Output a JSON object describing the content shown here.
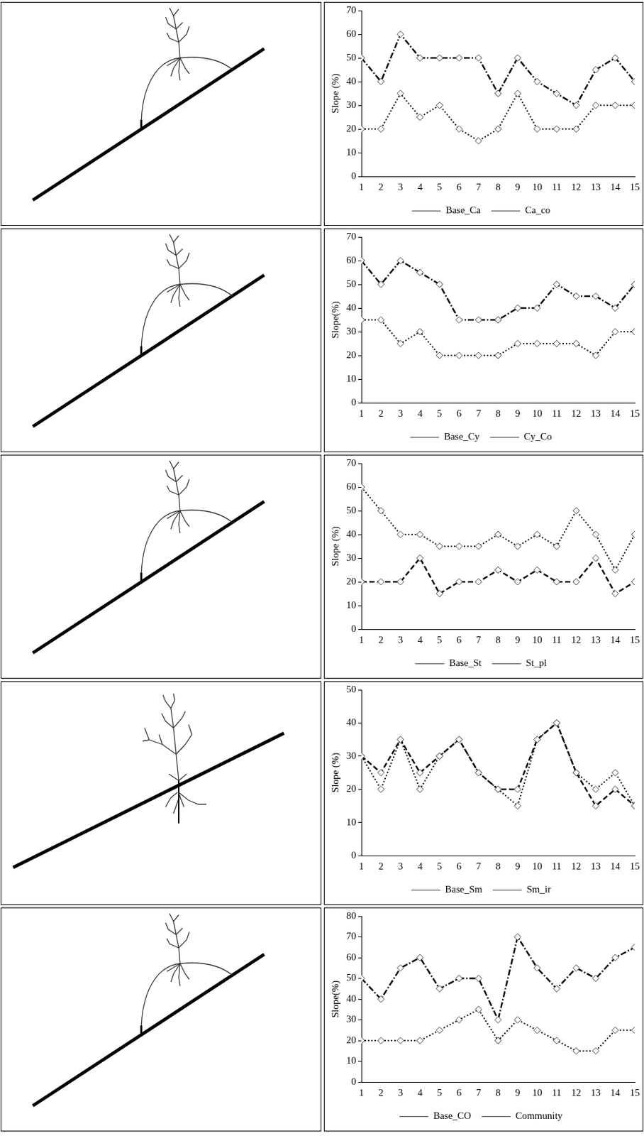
{
  "chart_data": [
    {
      "type": "line",
      "y_label": "Slope (%)",
      "categories": [
        1,
        2,
        3,
        4,
        5,
        6,
        7,
        8,
        9,
        10,
        11,
        12,
        13,
        14,
        15
      ],
      "ylim": [
        0,
        70
      ],
      "yticks": [
        0,
        10,
        20,
        30,
        40,
        50,
        60,
        70
      ],
      "grid": false,
      "legend": "bottom",
      "series": [
        {
          "name": "Base_Ca",
          "color": "#000000",
          "marker": "diamond",
          "line_style": "dotted",
          "values": [
            20,
            20,
            35,
            25,
            30,
            20,
            15,
            20,
            35,
            20,
            20,
            20,
            30,
            30,
            30
          ]
        },
        {
          "name": "Ca_co",
          "color": "#000000",
          "marker": "diamond",
          "line_style": "dashdot",
          "values": [
            50,
            40,
            60,
            50,
            50,
            50,
            50,
            35,
            50,
            40,
            35,
            30,
            45,
            50,
            40
          ]
        }
      ]
    },
    {
      "type": "line",
      "y_label": "Slope(%)",
      "categories": [
        1,
        2,
        3,
        4,
        5,
        6,
        7,
        8,
        9,
        10,
        11,
        12,
        13,
        14,
        15
      ],
      "ylim": [
        0,
        70
      ],
      "yticks": [
        0,
        10,
        20,
        30,
        40,
        50,
        60,
        70
      ],
      "grid": false,
      "legend": "bottom",
      "series": [
        {
          "name": "Base_Cy",
          "color": "#000000",
          "marker": "diamond",
          "line_style": "dotted",
          "values": [
            35,
            35,
            25,
            30,
            20,
            20,
            20,
            20,
            25,
            25,
            25,
            25,
            20,
            30,
            30
          ]
        },
        {
          "name": "Cy_Co",
          "color": "#000000",
          "marker": "diamond",
          "line_style": "dashdot",
          "values": [
            60,
            50,
            60,
            55,
            50,
            35,
            35,
            35,
            40,
            40,
            50,
            45,
            45,
            40,
            50
          ]
        }
      ]
    },
    {
      "type": "line",
      "y_label": "Slope (%)",
      "categories": [
        1,
        2,
        3,
        4,
        5,
        6,
        7,
        8,
        9,
        10,
        11,
        12,
        13,
        14,
        15
      ],
      "ylim": [
        0,
        70
      ],
      "yticks": [
        0,
        10,
        20,
        30,
        40,
        50,
        60,
        70
      ],
      "grid": false,
      "legend": "bottom",
      "series": [
        {
          "name": "Base_St",
          "color": "#000000",
          "marker": "diamond",
          "line_style": "dashed",
          "values": [
            20,
            20,
            20,
            30,
            15,
            20,
            20,
            25,
            20,
            25,
            20,
            20,
            30,
            15,
            20
          ]
        },
        {
          "name": "St_pl",
          "color": "#000000",
          "marker": "diamond",
          "line_style": "dotted",
          "values": [
            60,
            50,
            40,
            40,
            35,
            35,
            35,
            40,
            35,
            40,
            35,
            50,
            40,
            25,
            40
          ]
        }
      ]
    },
    {
      "type": "line",
      "y_label": "Slope (%)",
      "categories": [
        1,
        2,
        3,
        4,
        5,
        6,
        7,
        8,
        9,
        10,
        11,
        12,
        13,
        14,
        15
      ],
      "ylim": [
        0,
        50
      ],
      "yticks": [
        0,
        10,
        20,
        30,
        40,
        50
      ],
      "grid": false,
      "legend": "bottom",
      "series": [
        {
          "name": "Base_Sm",
          "color": "#000000",
          "marker": "diamond",
          "line_style": "dotted",
          "values": [
            30,
            20,
            35,
            20,
            30,
            35,
            25,
            20,
            15,
            35,
            40,
            25,
            20,
            25,
            15
          ]
        },
        {
          "name": "Sm_ir",
          "color": "#000000",
          "marker": "diamond",
          "line_style": "dashed",
          "values": [
            30,
            25,
            35,
            25,
            30,
            35,
            25,
            20,
            20,
            35,
            40,
            25,
            15,
            20,
            15
          ]
        }
      ]
    },
    {
      "type": "line",
      "y_label": "Slope(%)",
      "categories": [
        1,
        2,
        3,
        4,
        5,
        6,
        7,
        8,
        9,
        10,
        11,
        12,
        13,
        14,
        15
      ],
      "ylim": [
        0,
        80
      ],
      "yticks": [
        0,
        10,
        20,
        30,
        40,
        50,
        60,
        70,
        80
      ],
      "grid": false,
      "legend": "bottom",
      "series": [
        {
          "name": "Base_CO",
          "color": "#000000",
          "marker": "diamond",
          "line_style": "dotted",
          "values": [
            20,
            20,
            20,
            20,
            25,
            30,
            35,
            20,
            30,
            25,
            20,
            15,
            15,
            25,
            25
          ]
        },
        {
          "name": "Community",
          "color": "#000000",
          "marker": "diamond",
          "line_style": "dashdot",
          "values": [
            50,
            40,
            55,
            60,
            45,
            50,
            50,
            30,
            70,
            55,
            45,
            55,
            50,
            60,
            65
          ]
        }
      ]
    }
  ]
}
